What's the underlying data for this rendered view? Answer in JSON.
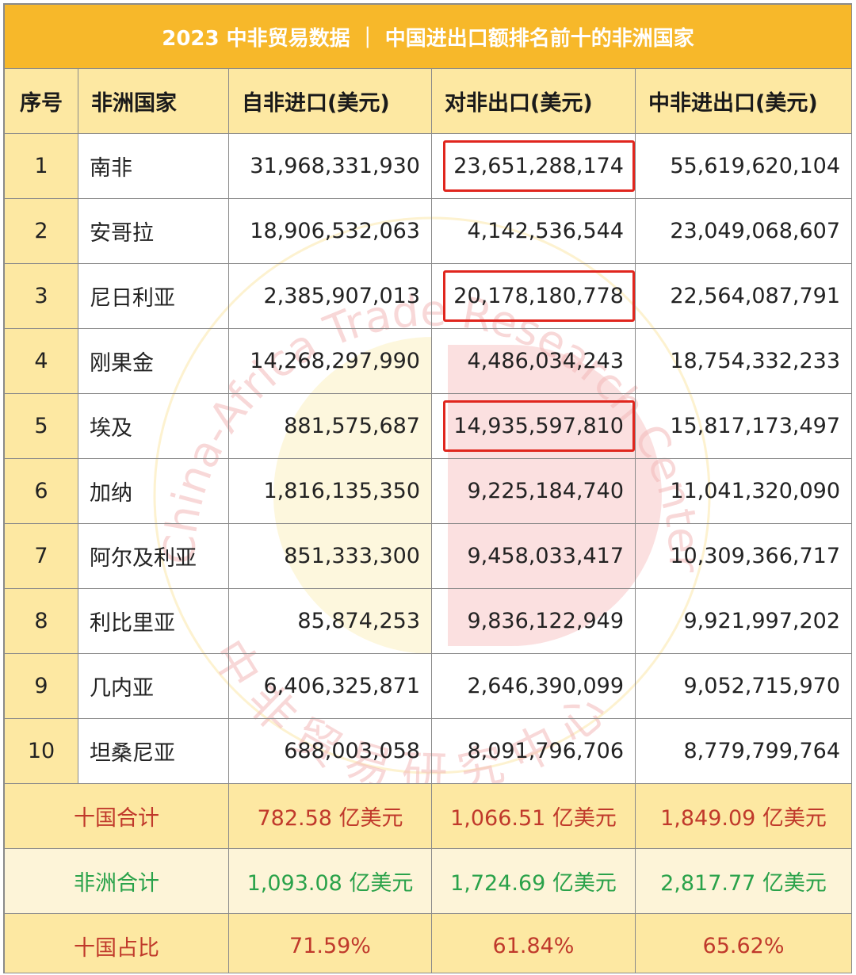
{
  "title": "2023 中非贸易数据 ｜ 中国进出口额排名前十的非洲国家",
  "headers": [
    "序号",
    "非洲国家",
    "自非进口(美元)",
    "对非出口(美元)",
    "中非进出口(美元)"
  ],
  "rows": [
    {
      "rank": "1",
      "country": "南非",
      "import": "31,968,331,930",
      "export": "23,651,288,174",
      "total": "55,619,620,104",
      "highlight": true
    },
    {
      "rank": "2",
      "country": "安哥拉",
      "import": "18,906,532,063",
      "export": "4,142,536,544",
      "total": "23,049,068,607",
      "highlight": false
    },
    {
      "rank": "3",
      "country": "尼日利亚",
      "import": "2,385,907,013",
      "export": "20,178,180,778",
      "total": "22,564,087,791",
      "highlight": true
    },
    {
      "rank": "4",
      "country": "刚果金",
      "import": "14,268,297,990",
      "export": "4,486,034,243",
      "total": "18,754,332,233",
      "highlight": false
    },
    {
      "rank": "5",
      "country": "埃及",
      "import": "881,575,687",
      "export": "14,935,597,810",
      "total": "15,817,173,497",
      "highlight": true
    },
    {
      "rank": "6",
      "country": "加纳",
      "import": "1,816,135,350",
      "export": "9,225,184,740",
      "total": "11,041,320,090",
      "highlight": false
    },
    {
      "rank": "7",
      "country": "阿尔及利亚",
      "import": "851,333,300",
      "export": "9,458,033,417",
      "total": "10,309,366,717",
      "highlight": false
    },
    {
      "rank": "8",
      "country": "利比里亚",
      "import": "85,874,253",
      "export": "9,836,122,949",
      "total": "9,921,997,202",
      "highlight": false
    },
    {
      "rank": "9",
      "country": "几内亚",
      "import": "6,406,325,871",
      "export": "2,646,390,099",
      "total": "9,052,715,970",
      "highlight": false
    },
    {
      "rank": "10",
      "country": "坦桑尼亚",
      "import": "688,003,058",
      "export": "8,091,796,706",
      "total": "8,779,799,764",
      "highlight": false
    }
  ],
  "summary": {
    "ten_total": {
      "label": "十国合计",
      "import": "782.58 亿美元",
      "export": "1,066.51 亿美元",
      "total": "1,849.09 亿美元"
    },
    "africa_total": {
      "label": "非洲合计",
      "import": "1,093.08 亿美元",
      "export": "1,724.69 亿美元",
      "total": "2,817.77 亿美元"
    },
    "ten_share": {
      "label": "十国占比",
      "import": "71.59%",
      "export": "61.84%",
      "total": "65.62%"
    }
  },
  "watermark": {
    "arc_text": "China-Africa Trade Research Center",
    "cn_text": "中 非 贸 易 研 究 中 心"
  },
  "colors": {
    "title_bg": "#f7b82a",
    "header_bg": "#fde8a2",
    "highlight_border": "#e0261e",
    "summary_red": "#c0392b",
    "summary_green": "#2aa24a"
  }
}
